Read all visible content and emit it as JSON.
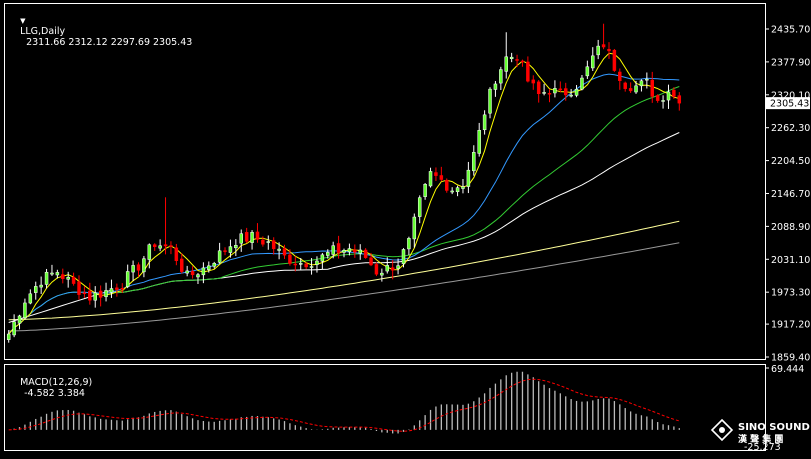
{
  "header": {
    "symbol": "LLG,Daily",
    "ohlc": "2311.66 2312.12 2297.69 2305.43"
  },
  "macd_header": {
    "label": "MACD(12,26,9)",
    "values": "-4.582 3.384"
  },
  "colors": {
    "background": "#000000",
    "frame": "#ffffff",
    "bull": "#ffffff",
    "bear": "#ff0000",
    "bull_body": "#66ff33",
    "ma5": "#ffff00",
    "ma20": "#3399ff",
    "ma40": "#33cc33",
    "ma60": "#ffffff",
    "ma120": "#ffff99",
    "ma200": "#999999",
    "macd_hist": "#bbbbbb",
    "macd_signal": "#ff0000"
  },
  "price_axis": {
    "ticks": [
      "2435.70",
      "2377.90",
      "2320.10",
      "2262.30",
      "2204.50",
      "2146.70",
      "2088.90",
      "2031.10",
      "1973.30",
      "1917.20",
      "1859.40"
    ],
    "current": "2305.43",
    "range": [
      1859.4,
      2435.7
    ]
  },
  "macd_axis": {
    "top": "69.444",
    "bottom": "-25.273",
    "range": [
      -25.273,
      69.444
    ]
  },
  "logo": {
    "name": "SINO SOUND",
    "cn": "漢 聲 集 團"
  },
  "chart_data": {
    "type": "candlestick",
    "anchors": [
      [
        0,
        1900
      ],
      [
        3,
        1960
      ],
      [
        6,
        1995
      ],
      [
        9,
        2010
      ],
      [
        12,
        1985
      ],
      [
        15,
        1965
      ],
      [
        18,
        1975
      ],
      [
        21,
        1990
      ],
      [
        24,
        2020
      ],
      [
        27,
        2060
      ],
      [
        30,
        2050
      ],
      [
        33,
        2000
      ],
      [
        36,
        2015
      ],
      [
        39,
        2040
      ],
      [
        42,
        2065
      ],
      [
        45,
        2070
      ],
      [
        48,
        2060
      ],
      [
        51,
        2035
      ],
      [
        54,
        2025
      ],
      [
        57,
        2030
      ],
      [
        60,
        2045
      ],
      [
        63,
        2050
      ],
      [
        66,
        2035
      ],
      [
        68,
        2010
      ],
      [
        70,
        2015
      ],
      [
        72,
        2025
      ],
      [
        74,
        2060
      ],
      [
        76,
        2130
      ],
      [
        78,
        2180
      ],
      [
        80,
        2170
      ],
      [
        82,
        2155
      ],
      [
        84,
        2165
      ],
      [
        86,
        2215
      ],
      [
        88,
        2290
      ],
      [
        90,
        2350
      ],
      [
        92,
        2385
      ],
      [
        94,
        2390
      ],
      [
        96,
        2345
      ],
      [
        98,
        2320
      ],
      [
        100,
        2330
      ],
      [
        102,
        2320
      ],
      [
        104,
        2330
      ],
      [
        106,
        2345
      ],
      [
        108,
        2385
      ],
      [
        110,
        2410
      ],
      [
        112,
        2370
      ],
      [
        114,
        2340
      ],
      [
        116,
        2335
      ],
      [
        118,
        2340
      ],
      [
        120,
        2310
      ],
      [
        122,
        2330
      ],
      [
        124,
        2305
      ]
    ],
    "ma_end_values": {
      "ma20": 2322,
      "ma40": 2262,
      "ma60": 2212,
      "ma120": 2098,
      "ma200": 2060
    }
  }
}
